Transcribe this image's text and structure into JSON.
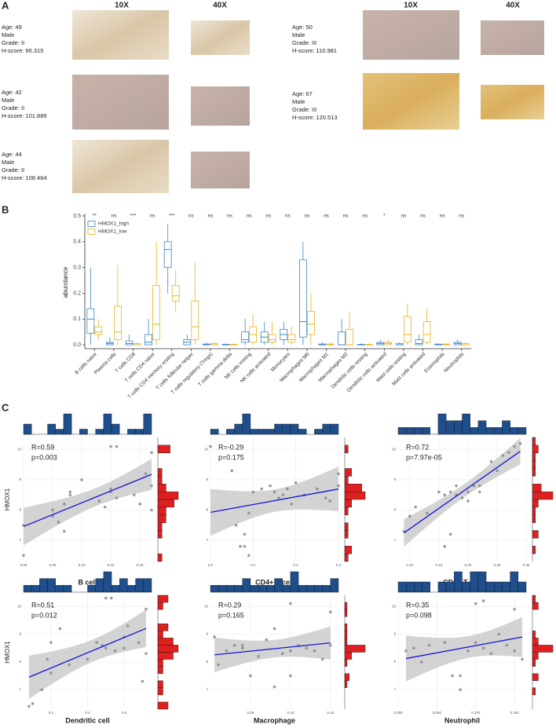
{
  "panel_labels": [
    "A",
    "B",
    "C"
  ],
  "panel_a": {
    "headers": [
      "10X",
      "40X",
      "10X",
      "40X"
    ],
    "samples": [
      {
        "age": "Age: 49",
        "sex": "Male",
        "grade": "Grade: II",
        "hscore": "H-score: 96.315",
        "color": "#1a1aff"
      },
      {
        "age": "Age: 42",
        "sex": "Male",
        "grade": "Grade: II",
        "hscore": "H-score: 101.889",
        "color": "#1a1aff"
      },
      {
        "age": "Age: 44",
        "sex": "Male",
        "grade": "Grade: II",
        "hscore": "H-score: 108.464",
        "color": "#1a1aff"
      },
      {
        "age": "Age: 50",
        "sex": "Male",
        "grade": "Grade: III",
        "hscore": "H-score: 110.981",
        "color": "#e8281e"
      },
      {
        "age": "Age: 67",
        "sex": "Male",
        "grade": "Grade: III",
        "hscore": "H-score: 120.513",
        "color": "#e8281e"
      }
    ]
  },
  "chart_data": [
    {
      "type": "box",
      "ylabel": "abundance",
      "legend": "top-left",
      "categories": [
        "B cells naive",
        "Plasma cells",
        "T cells CD8",
        "T cells CD4 naive",
        "T cells CD4 memory resting",
        "T cells follicular helper",
        "T cells regulatory (Tregs)",
        "T cells gamma delta",
        "NK cells resting",
        "NK cells activated",
        "Monocytes",
        "Macrophages M0",
        "Macrophages M1",
        "Macrophages M2",
        "Dendritic cells resting",
        "Dendritic cells activated",
        "Mast cells resting",
        "Mast cells activated",
        "Eosinophils",
        "Neutrophils"
      ],
      "significance": [
        "**",
        "ns",
        "***",
        "ns",
        "***",
        "ns",
        "ns",
        "ns",
        "ns",
        "ns",
        "ns",
        "ns",
        "ns",
        "ns",
        "ns",
        "*",
        "ns",
        "ns",
        "ns",
        "ns"
      ],
      "ylim": [
        -0.015,
        0.5
      ],
      "yticks": [
        {
          "value": 0,
          "label": "0.0"
        },
        0.1,
        0.2,
        0.3,
        0.4,
        0.5
      ],
      "series": [
        {
          "name": "HMOX1_high",
          "color": "#3a86c8",
          "min": [
            0,
            0,
            0,
            0,
            0.2,
            0,
            0,
            0,
            0,
            0,
            0,
            0,
            0,
            0,
            0,
            0,
            0,
            0,
            0,
            0
          ],
          "q1": [
            0.045,
            0,
            0,
            0,
            0.3,
            0,
            0,
            0,
            0.01,
            0.01,
            0.02,
            0.03,
            0,
            0,
            0,
            0,
            0,
            0,
            0,
            0
          ],
          "median": [
            0.1,
            0.005,
            0.005,
            0.01,
            0.37,
            0.01,
            0,
            0,
            0.02,
            0.03,
            0.04,
            0.09,
            0,
            0,
            0,
            0.005,
            0,
            0.005,
            0,
            0.005
          ],
          "q3": [
            0.14,
            0.01,
            0.015,
            0.04,
            0.4,
            0.02,
            0.003,
            0.002,
            0.05,
            0.05,
            0.06,
            0.33,
            0.003,
            0.05,
            0.002,
            0.01,
            0.005,
            0.02,
            0.003,
            0.01
          ],
          "max": [
            0.3,
            0.03,
            0.04,
            0.1,
            0.47,
            0.04,
            0.01,
            0.005,
            0.1,
            0.09,
            0.09,
            0.4,
            0.01,
            0.1,
            0.005,
            0.02,
            0.01,
            0.04,
            0.005,
            0.02
          ]
        },
        {
          "name": "HMOX1_low",
          "color": "#e6b422",
          "min": [
            0.02,
            0,
            0,
            0,
            0.13,
            0,
            0,
            0,
            0,
            0,
            0,
            0,
            0,
            0,
            0,
            0,
            0,
            0,
            0,
            0
          ],
          "q1": [
            0.04,
            0.02,
            0,
            0.02,
            0.17,
            0.02,
            0,
            0,
            0.01,
            0.01,
            0.01,
            0.04,
            0,
            0,
            0,
            0,
            0.01,
            0.01,
            0,
            0
          ],
          "median": [
            0.05,
            0.05,
            0,
            0.08,
            0.19,
            0.07,
            0,
            0,
            0.04,
            0.02,
            0.02,
            0.08,
            0,
            0,
            0,
            0.005,
            0.04,
            0.04,
            0,
            0
          ],
          "q3": [
            0.07,
            0.15,
            0.005,
            0.23,
            0.23,
            0.17,
            0.005,
            0.002,
            0.07,
            0.04,
            0.04,
            0.13,
            0.003,
            0.06,
            0.002,
            0.01,
            0.11,
            0.09,
            0.003,
            0.005
          ],
          "max": [
            0.1,
            0.31,
            0.01,
            0.4,
            0.29,
            0.32,
            0.01,
            0.005,
            0.12,
            0.09,
            0.07,
            0.2,
            0.01,
            0.13,
            0.005,
            0.02,
            0.16,
            0.14,
            0.005,
            0.01
          ]
        }
      ]
    },
    {
      "type": "scatter",
      "xlabel": "B cell",
      "ylabel": "HMOX1",
      "annotations": [
        "R=0.59",
        "p=0.003"
      ],
      "fit": "linear",
      "grid": true,
      "xlim": [
        0,
        0.22
      ],
      "xticks": [
        {
          "value": 0,
          "label": "0.00"
        },
        {
          "value": 0.05,
          "label": "0.05"
        },
        {
          "value": 0.1,
          "label": "0.10"
        },
        {
          "value": 0.15,
          "label": "0.15"
        },
        {
          "value": 0.2,
          "label": "0.20"
        }
      ],
      "ylim": [
        6.3,
        10.4
      ],
      "yticks": [
        7,
        8,
        9,
        10
      ],
      "x": [
        0,
        0,
        0.05,
        0.05,
        0.06,
        0.07,
        0.07,
        0.08,
        0.08,
        0.1,
        0.13,
        0.14,
        0.15,
        0.15,
        0.15,
        0.16,
        0.16,
        0.19,
        0.2,
        0.21,
        0.22,
        0.22,
        0.22
      ],
      "y": [
        6.5,
        7.5,
        8,
        7.8,
        7.6,
        8.2,
        7.3,
        8.6,
        8.5,
        9,
        8.3,
        8.1,
        10.1,
        8.6,
        8.7,
        8.4,
        10.1,
        8.5,
        8.2,
        9.2,
        9.9,
        8,
        8.8
      ]
    },
    {
      "type": "scatter",
      "xlabel": "CD4+ T cell",
      "annotations": [
        "R=-0.29",
        "p=0.175"
      ],
      "fit": "linear",
      "grid": true,
      "xlim": [
        0,
        0.3
      ],
      "xticks": [
        {
          "value": 0,
          "label": "0.0"
        },
        0.1,
        0.2,
        0.3
      ],
      "ylim": [
        6.3,
        10.4
      ],
      "yticks": [
        7,
        8,
        9,
        10
      ],
      "x": [
        0,
        0.05,
        0.06,
        0.07,
        0.08,
        0.08,
        0.09,
        0.09,
        0.1,
        0.12,
        0.14,
        0.15,
        0.16,
        0.17,
        0.18,
        0.19,
        0.2,
        0.22,
        0.25,
        0.27,
        0.28,
        0.3,
        0.3
      ],
      "y": [
        10.1,
        9.3,
        7.5,
        6.8,
        6.8,
        7.2,
        6.5,
        7.9,
        8.6,
        8.7,
        8.8,
        8.6,
        8.4,
        8.5,
        8.7,
        8.2,
        8.9,
        8.5,
        8.7,
        8.4,
        8.3,
        8.8,
        9.2
      ]
    },
    {
      "type": "scatter",
      "xlabel": "CD8+ T cell",
      "annotations": [
        "R=0.72",
        "p=7.97e-05"
      ],
      "fit": "linear",
      "grid": true,
      "xlim": [
        0.08,
        0.3
      ],
      "xticks": [
        {
          "value": 0.1,
          "label": "0.10"
        },
        0.15,
        {
          "value": 0.2,
          "label": "0.20"
        },
        0.25,
        {
          "value": 0.3,
          "label": "0.30"
        }
      ],
      "ylim": [
        6.3,
        10.4
      ],
      "yticks": [
        7,
        8,
        9,
        10
      ],
      "x": [
        0.09,
        0.1,
        0.11,
        0.13,
        0.15,
        0.16,
        0.16,
        0.17,
        0.17,
        0.18,
        0.18,
        0.19,
        0.2,
        0.2,
        0.21,
        0.22,
        0.22,
        0.24,
        0.25,
        0.26,
        0.27,
        0.28,
        0.29
      ],
      "y": [
        7.3,
        7.8,
        8.1,
        7.9,
        8.6,
        8.5,
        6.8,
        7.2,
        8.6,
        8.5,
        8.8,
        8.4,
        8.6,
        8.3,
        8.8,
        8.8,
        8.6,
        9.6,
        9.3,
        9.8,
        9.9,
        10.1,
        10.2
      ]
    },
    {
      "type": "scatter",
      "xlabel": "Dendritic cell",
      "ylabel": "HMOX1",
      "annotations": [
        "R=0.51",
        "p=0.012"
      ],
      "fit": "linear",
      "grid": true,
      "xlim": [
        0.05,
        0.75
      ],
      "xticks": [
        0.2,
        0.4,
        0.6
      ],
      "ylim": [
        6.3,
        10.4
      ],
      "yticks": [
        7,
        8,
        9,
        10
      ],
      "x": [
        0.08,
        0.1,
        0.15,
        0.18,
        0.2,
        0.2,
        0.25,
        0.3,
        0.4,
        0.45,
        0.48,
        0.5,
        0.5,
        0.53,
        0.55,
        0.6,
        0.6,
        0.62,
        0.68,
        0.7,
        0.72,
        0.72
      ],
      "y": [
        6.4,
        6.5,
        7,
        8.1,
        7.6,
        8.7,
        9.2,
        7.9,
        8.1,
        8.7,
        8.6,
        8.5,
        10.3,
        10.3,
        8.4,
        8.5,
        8.9,
        9.3,
        8.7,
        7.3,
        8.3,
        9.9
      ]
    },
    {
      "type": "scatter",
      "xlabel": "Macrophage",
      "annotations": [
        "R=0.29",
        "p=0.165"
      ],
      "fit": "linear",
      "grid": true,
      "xlim": [
        0,
        0.16
      ],
      "xticks": [
        0.05,
        {
          "value": 0.1,
          "label": "0.10"
        },
        0.15
      ],
      "ylim": [
        6.3,
        10.4
      ],
      "yticks": [
        7,
        8,
        9,
        10
      ],
      "x": [
        0.005,
        0.01,
        0.02,
        0.03,
        0.04,
        0.04,
        0.05,
        0.06,
        0.07,
        0.08,
        0.08,
        0.09,
        0.1,
        0.1,
        0.1,
        0.11,
        0.12,
        0.13,
        0.14,
        0.15,
        0.15
      ],
      "y": [
        8.9,
        7.9,
        8.4,
        8.6,
        8.5,
        8.6,
        7.5,
        8.2,
        8.8,
        7.1,
        9.2,
        8.3,
        10.1,
        8.4,
        7.5,
        8.6,
        8.5,
        8.4,
        8.1,
        8.6,
        9.8
      ]
    },
    {
      "type": "scatter",
      "xlabel": "Neutrophil",
      "annotations": [
        "R=0.35",
        "p=0.098"
      ],
      "fit": "linear",
      "grid": true,
      "xlim": [
        0,
        0.165
      ],
      "xticks": [
        {
          "value": 0,
          "label": "0.000"
        },
        {
          "value": 0.05,
          "label": "0.050"
        },
        {
          "value": 0.1,
          "label": "0.100"
        },
        {
          "value": 0.15,
          "label": "0.150"
        }
      ],
      "ylim": [
        6.3,
        10.4
      ],
      "yticks": [
        7,
        8,
        9,
        10
      ],
      "x": [
        0.01,
        0.02,
        0.03,
        0.04,
        0.06,
        0.07,
        0.08,
        0.08,
        0.09,
        0.1,
        0.1,
        0.11,
        0.11,
        0.12,
        0.13,
        0.14,
        0.15,
        0.15,
        0.16
      ],
      "y": [
        8.4,
        8.5,
        8,
        8.6,
        8.7,
        7.5,
        7,
        7.5,
        8.4,
        8.7,
        10.1,
        10.2,
        8.5,
        8.3,
        9,
        8.6,
        8.4,
        9.9,
        8.1
      ]
    }
  ]
}
